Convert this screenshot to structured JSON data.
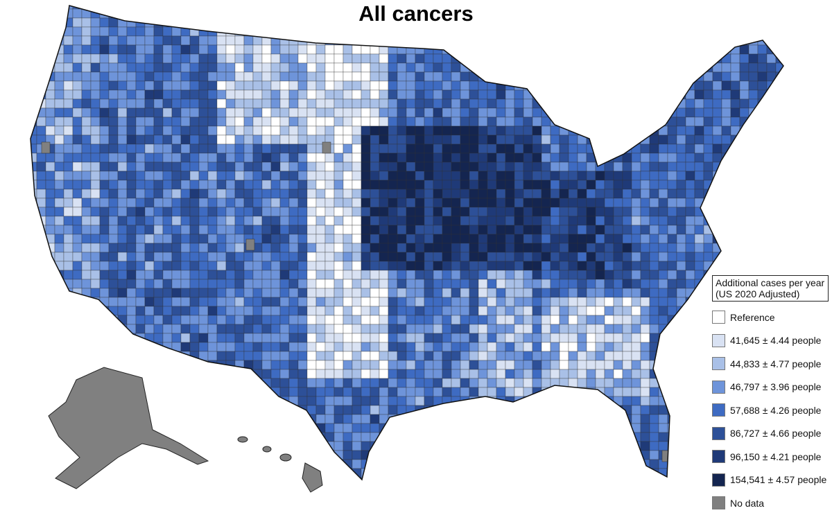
{
  "title": "All cancers",
  "legend": {
    "title_line1": "Additional cases per year",
    "title_line2": "(US 2020 Adjusted)",
    "items": [
      {
        "label": "Reference",
        "color": "#ffffff"
      },
      {
        "label": "41,645 ± 4.44 people",
        "color": "#d9e2f3"
      },
      {
        "label": "44,833 ± 4.77 people",
        "color": "#a9c0e7"
      },
      {
        "label": "46,797 ± 3.96 people",
        "color": "#6e94da"
      },
      {
        "label": "57,688 ± 4.26 people",
        "color": "#3e6bc2"
      },
      {
        "label": "86,727 ± 4.66 people",
        "color": "#2d5098"
      },
      {
        "label": "96,150 ± 4.21 people",
        "color": "#1f3a78"
      },
      {
        "label": "154,541 ± 4.57 people",
        "color": "#142550"
      },
      {
        "label": "No data",
        "color": "#808080"
      }
    ]
  }
}
